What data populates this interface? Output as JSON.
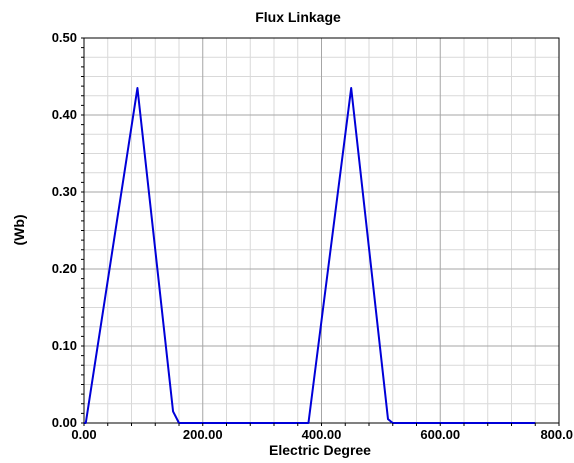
{
  "chart_data": {
    "type": "line",
    "title": "Flux Linkage",
    "xlabel": "Electric Degree",
    "ylabel": "(Wb)",
    "xlim": [
      0,
      800
    ],
    "ylim": [
      0,
      0.5
    ],
    "grid": true,
    "xticks": [
      "0.00",
      "200.00",
      "400.00",
      "600.00",
      "800.0"
    ],
    "yticks": [
      "0.00",
      "0.10",
      "0.20",
      "0.30",
      "0.40",
      "0.50"
    ],
    "x_tick_values": [
      0,
      200,
      400,
      600,
      800
    ],
    "y_tick_values": [
      0,
      0.1,
      0.2,
      0.3,
      0.4,
      0.5
    ],
    "series": [
      {
        "color": "#0000d8",
        "x": [
          0,
          3,
          90,
          150,
          160,
          370,
          378,
          450,
          512,
          520,
          760
        ],
        "y": [
          0,
          0,
          0.435,
          0.015,
          0,
          0,
          0,
          0.435,
          0.005,
          0,
          0
        ]
      }
    ]
  }
}
